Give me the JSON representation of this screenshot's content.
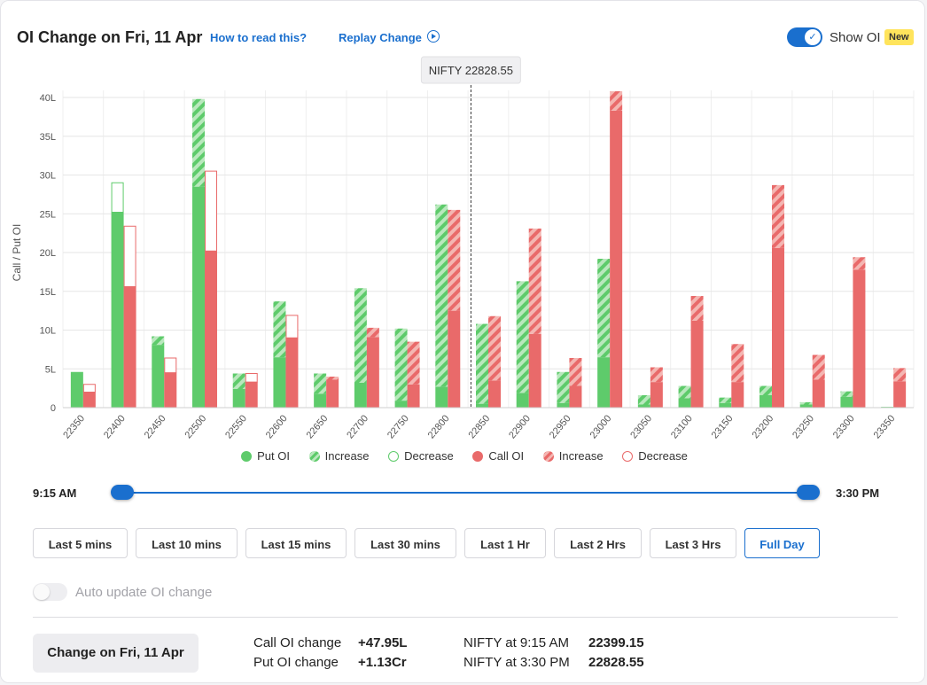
{
  "header": {
    "title": "OI Change on Fri, 11 Apr",
    "how_to_read": "How to read this?",
    "replay": "Replay Change",
    "show_oi_label": "Show OI",
    "new_badge": "New",
    "show_oi_on": true
  },
  "chart_data": {
    "type": "bar",
    "ylabel": "Call / Put OI",
    "ylim": [
      0,
      40
    ],
    "yticks": [
      "0",
      "5L",
      "10L",
      "15L",
      "20L",
      "25L",
      "30L",
      "35L",
      "40L"
    ],
    "spot_label": "NIFTY 22828.55",
    "spot_value": 22828.55,
    "strikes": [
      "22350",
      "22400",
      "22450",
      "22500",
      "22550",
      "22600",
      "22650",
      "22700",
      "22750",
      "22800",
      "22850",
      "22900",
      "22950",
      "23000",
      "23050",
      "23100",
      "23150",
      "23200",
      "23250",
      "23300",
      "23350"
    ],
    "put": {
      "start": [
        4.6,
        29.0,
        8.1,
        28.5,
        2.4,
        6.5,
        1.8,
        3.2,
        0.9,
        2.7,
        0.5,
        1.9,
        0.6,
        6.5,
        0.4,
        1.2,
        0.6,
        1.6,
        0.4,
        1.4,
        0.1
      ],
      "end": [
        4.6,
        25.2,
        9.2,
        39.8,
        4.4,
        13.7,
        4.4,
        15.4,
        10.2,
        26.2,
        10.8,
        16.3,
        4.6,
        19.2,
        1.6,
        2.8,
        1.3,
        2.8,
        0.7,
        2.1,
        0.1
      ]
    },
    "call": {
      "start": [
        3.0,
        23.4,
        6.4,
        30.5,
        4.4,
        11.9,
        3.6,
        9.1,
        3.0,
        12.5,
        3.5,
        9.5,
        2.8,
        38.3,
        3.3,
        11.2,
        3.3,
        20.6,
        3.6,
        17.8,
        3.4
      ],
      "end": [
        2.0,
        15.6,
        4.5,
        20.2,
        3.3,
        9.0,
        4.0,
        10.3,
        8.5,
        25.5,
        11.8,
        23.1,
        6.4,
        40.8,
        5.2,
        14.4,
        8.2,
        28.7,
        6.8,
        19.4,
        5.1
      ]
    },
    "legend": [
      "Put OI",
      "Increase",
      "Decrease",
      "Call OI",
      "Increase",
      "Decrease"
    ]
  },
  "colors": {
    "put": "#5ecb6b",
    "put_light": "#b9e8bd",
    "call": "#e96a6a",
    "call_light": "#f4b6b2",
    "accent": "#1a6fce"
  },
  "slider": {
    "start_label": "9:15 AM",
    "end_label": "3:30 PM"
  },
  "ranges": [
    "Last 5 mins",
    "Last 10 mins",
    "Last 15 mins",
    "Last 30 mins",
    "Last 1 Hr",
    "Last 2 Hrs",
    "Last 3 Hrs",
    "Full Day"
  ],
  "active_range": "Full Day",
  "auto_update": {
    "label": "Auto update OI change",
    "on": false
  },
  "summary": {
    "button": "Change on Fri, 11 Apr",
    "call_label": "Call OI change",
    "call_value": "+47.95L",
    "put_label": "Put OI change",
    "put_value": "+1.13Cr",
    "nifty_start_label": "NIFTY at 9:15 AM",
    "nifty_start_value": "22399.15",
    "nifty_end_label": "NIFTY at 3:30 PM",
    "nifty_end_value": "22828.55"
  }
}
